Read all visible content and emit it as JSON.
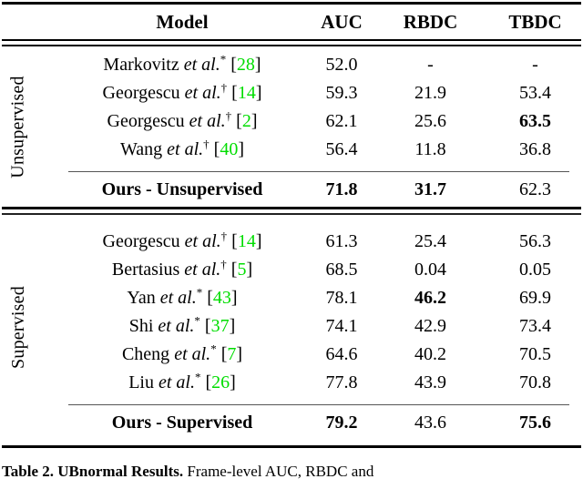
{
  "table": {
    "citation_color": "#00dd00",
    "columns": [
      "Model",
      "AUC",
      "RBDC",
      "TBDC"
    ],
    "sections": [
      {
        "label": "Unsupervised",
        "rows": [
          {
            "author": "Markovitz",
            "etal": "et al.",
            "marker": "*",
            "cite": "28",
            "values": [
              "52.0",
              "-",
              "-"
            ],
            "bold": [
              false,
              false,
              false
            ]
          },
          {
            "author": "Georgescu",
            "etal": "et al.",
            "marker": "†",
            "cite": "14",
            "values": [
              "59.3",
              "21.9",
              "53.4"
            ],
            "bold": [
              false,
              false,
              false
            ]
          },
          {
            "author": "Georgescu",
            "etal": "et al.",
            "marker": "†",
            "cite": "2",
            "values": [
              "62.1",
              "25.6",
              "63.5"
            ],
            "bold": [
              false,
              false,
              true
            ]
          },
          {
            "author": "Wang",
            "etal": "et al.",
            "marker": "†",
            "cite": "40",
            "values": [
              "56.4",
              "11.8",
              "36.8"
            ],
            "bold": [
              false,
              false,
              false
            ]
          }
        ],
        "ours": {
          "label": "Ours - Unsupervised",
          "values": [
            "71.8",
            "31.7",
            "62.3"
          ],
          "bold": [
            true,
            true,
            false
          ]
        }
      },
      {
        "label": "Supervised",
        "rows": [
          {
            "author": "Georgescu",
            "etal": "et al.",
            "marker": "†",
            "cite": "14",
            "values": [
              "61.3",
              "25.4",
              "56.3"
            ],
            "bold": [
              false,
              false,
              false
            ]
          },
          {
            "author": "Bertasius",
            "etal": "et al.",
            "marker": "†",
            "cite": "5",
            "values": [
              "68.5",
              "0.04",
              "0.05"
            ],
            "bold": [
              false,
              false,
              false
            ]
          },
          {
            "author": "Yan",
            "etal": "et al.",
            "marker": "*",
            "cite": "43",
            "values": [
              "78.1",
              "46.2",
              "69.9"
            ],
            "bold": [
              false,
              true,
              false
            ]
          },
          {
            "author": "Shi",
            "etal": "et al.",
            "marker": "*",
            "cite": "37",
            "values": [
              "74.1",
              "42.9",
              "73.4"
            ],
            "bold": [
              false,
              false,
              false
            ]
          },
          {
            "author": "Cheng",
            "etal": "et al.",
            "marker": "*",
            "cite": "7",
            "values": [
              "64.6",
              "40.2",
              "70.5"
            ],
            "bold": [
              false,
              false,
              false
            ]
          },
          {
            "author": "Liu",
            "etal": "et al.",
            "marker": "*",
            "cite": "26",
            "values": [
              "77.8",
              "43.9",
              "70.8"
            ],
            "bold": [
              false,
              false,
              false
            ]
          }
        ],
        "ours": {
          "label": "Ours - Supervised",
          "values": [
            "79.2",
            "43.6",
            "75.6"
          ],
          "bold": [
            true,
            false,
            true
          ]
        }
      }
    ]
  },
  "caption": {
    "prefix": "Table 2.",
    "title": "UBnormal Results.",
    "text": "Frame-level AUC, RBDC and"
  }
}
